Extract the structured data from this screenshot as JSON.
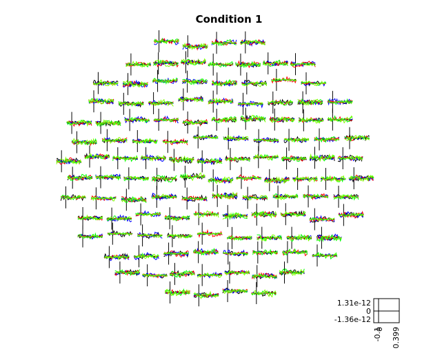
{
  "chart_data": {
    "type": "line",
    "title": "Condition 1",
    "layout": "sensor-topography",
    "sensor_count": 149,
    "colors": [
      "#000000",
      "#0000ff",
      "#ff0000",
      "#00ff00",
      "#7fff00"
    ],
    "scale_legend": {
      "y_ticks": [
        "1.31e-12",
        "0",
        "-1.36e-12"
      ],
      "ylim": [
        -1.36e-12,
        1.31e-12
      ],
      "x_ticks": [
        "-0.1",
        "0",
        "0.399"
      ],
      "xlim": [
        -0.1,
        0.399
      ]
    }
  }
}
